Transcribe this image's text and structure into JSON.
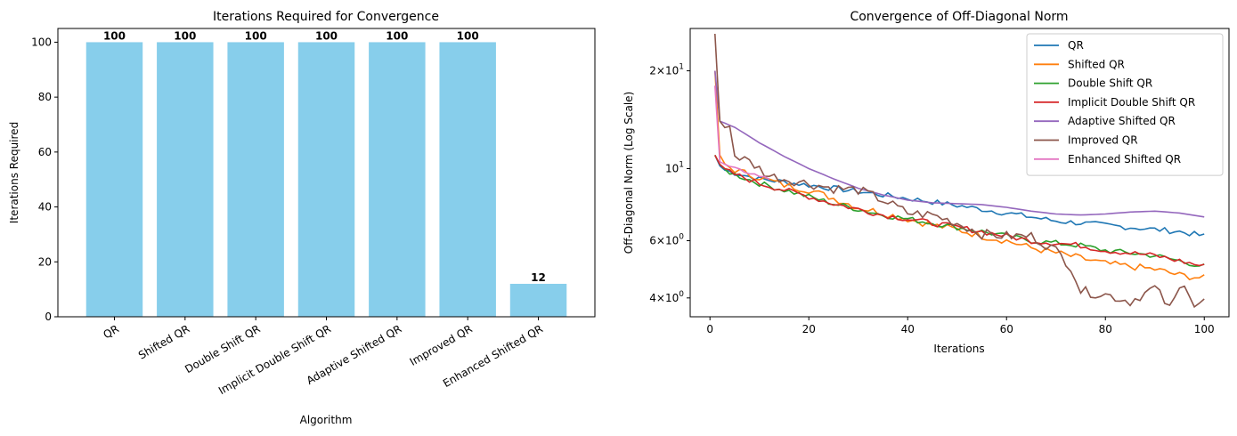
{
  "chart_data": [
    {
      "type": "bar",
      "title": "Iterations Required for Convergence",
      "xlabel": "Algorithm",
      "ylabel": "Iterations Required",
      "categories": [
        "QR",
        "Shifted QR",
        "Double Shift QR",
        "Implicit Double Shift QR",
        "Adaptive Shifted QR",
        "Improved QR",
        "Enhanced Shifted QR"
      ],
      "values": [
        100,
        100,
        100,
        100,
        100,
        100,
        12
      ],
      "data_labels": [
        "100",
        "100",
        "100",
        "100",
        "100",
        "100",
        "12"
      ],
      "ylim": [
        0,
        105
      ],
      "yticks": [
        0,
        20,
        40,
        60,
        80,
        100
      ],
      "ytick_labels": [
        "0",
        "20",
        "40",
        "60",
        "80",
        "100"
      ],
      "bar_color": "#87ceeb",
      "xtick_rotation": 30,
      "grid": false
    },
    {
      "type": "line",
      "title": "Convergence of Off-Diagonal Norm",
      "xlabel": "Iterations",
      "ylabel": "Off-Diagonal Norm (Log Scale)",
      "yscale": "log",
      "xlim": [
        -4,
        105
      ],
      "ylim": [
        3.5,
        27
      ],
      "xticks": [
        0,
        20,
        40,
        60,
        80,
        100
      ],
      "xtick_labels": [
        "0",
        "20",
        "40",
        "60",
        "80",
        "100"
      ],
      "yticks": [
        4,
        6,
        10,
        20
      ],
      "ytick_labels": [
        {
          "base": "4",
          "times": "×",
          "pow": "10",
          "exp": "0"
        },
        {
          "base": "6",
          "times": "×",
          "pow": "10",
          "exp": "0"
        },
        {
          "base": "",
          "times": "",
          "pow": "10",
          "exp": "1"
        },
        {
          "base": "2",
          "times": "×",
          "pow": "10",
          "exp": "1"
        }
      ],
      "grid": false,
      "legend_position": "top-right",
      "series": [
        {
          "name": "QR",
          "color": "#1f77b4",
          "points": [
            [
              1,
              11
            ],
            [
              2,
              10.2
            ],
            [
              3,
              9.9
            ],
            [
              5,
              9.7
            ],
            [
              10,
              9.3
            ],
            [
              15,
              9.1
            ],
            [
              20,
              8.9
            ],
            [
              25,
              8.7
            ],
            [
              30,
              8.5
            ],
            [
              35,
              8.3
            ],
            [
              40,
              8.1
            ],
            [
              45,
              7.9
            ],
            [
              50,
              7.7
            ],
            [
              55,
              7.5
            ],
            [
              60,
              7.3
            ],
            [
              65,
              7.1
            ],
            [
              70,
              6.9
            ],
            [
              75,
              6.8
            ],
            [
              80,
              6.7
            ],
            [
              85,
              6.6
            ],
            [
              90,
              6.5
            ],
            [
              95,
              6.4
            ],
            [
              100,
              6.2
            ]
          ],
          "jitter": 0.02
        },
        {
          "name": "Shifted QR",
          "color": "#ff7f0e",
          "points": [
            [
              1,
              20
            ],
            [
              2,
              11
            ],
            [
              3,
              10.3
            ],
            [
              5,
              9.9
            ],
            [
              10,
              9.4
            ],
            [
              15,
              8.9
            ],
            [
              20,
              8.6
            ],
            [
              25,
              8.1
            ],
            [
              30,
              7.6
            ],
            [
              35,
              7.3
            ],
            [
              40,
              7.0
            ],
            [
              45,
              6.7
            ],
            [
              50,
              6.5
            ],
            [
              55,
              6.2
            ],
            [
              60,
              6.0
            ],
            [
              65,
              5.7
            ],
            [
              70,
              5.5
            ],
            [
              75,
              5.3
            ],
            [
              80,
              5.1
            ],
            [
              85,
              5.0
            ],
            [
              90,
              4.9
            ],
            [
              95,
              4.7
            ],
            [
              100,
              4.6
            ]
          ],
          "jitter": 0.025
        },
        {
          "name": "Double Shift QR",
          "color": "#2ca02c",
          "points": [
            [
              1,
              11
            ],
            [
              2,
              10.3
            ],
            [
              3,
              9.9
            ],
            [
              5,
              9.6
            ],
            [
              10,
              9.0
            ],
            [
              15,
              8.6
            ],
            [
              20,
              8.2
            ],
            [
              25,
              7.8
            ],
            [
              30,
              7.5
            ],
            [
              35,
              7.2
            ],
            [
              40,
              7.0
            ],
            [
              45,
              6.8
            ],
            [
              50,
              6.6
            ],
            [
              55,
              6.4
            ],
            [
              60,
              6.2
            ],
            [
              65,
              6.0
            ],
            [
              70,
              5.9
            ],
            [
              75,
              5.8
            ],
            [
              80,
              5.6
            ],
            [
              85,
              5.5
            ],
            [
              90,
              5.4
            ],
            [
              95,
              5.2
            ],
            [
              100,
              5.0
            ]
          ],
          "jitter": 0.02
        },
        {
          "name": "Implicit Double Shift QR",
          "color": "#d62728",
          "points": [
            [
              1,
              11
            ],
            [
              2,
              10.3
            ],
            [
              3,
              9.9
            ],
            [
              5,
              9.6
            ],
            [
              10,
              9.0
            ],
            [
              15,
              8.6
            ],
            [
              20,
              8.2
            ],
            [
              25,
              7.8
            ],
            [
              30,
              7.5
            ],
            [
              35,
              7.2
            ],
            [
              40,
              7.0
            ],
            [
              45,
              6.8
            ],
            [
              50,
              6.6
            ],
            [
              55,
              6.4
            ],
            [
              60,
              6.2
            ],
            [
              65,
              6.0
            ],
            [
              70,
              5.9
            ],
            [
              75,
              5.8
            ],
            [
              80,
              5.6
            ],
            [
              85,
              5.5
            ],
            [
              90,
              5.4
            ],
            [
              95,
              5.2
            ],
            [
              100,
              5.0
            ]
          ],
          "jitter": 0.02
        },
        {
          "name": "Adaptive Shifted QR",
          "color": "#9467bd",
          "points": [
            [
              1,
              20
            ],
            [
              2,
              14
            ],
            [
              5,
              13.4
            ],
            [
              10,
              12
            ],
            [
              15,
              10.9
            ],
            [
              20,
              10
            ],
            [
              25,
              9.3
            ],
            [
              30,
              8.7
            ],
            [
              35,
              8.3
            ],
            [
              40,
              8.0
            ],
            [
              45,
              7.85
            ],
            [
              50,
              7.8
            ],
            [
              55,
              7.75
            ],
            [
              60,
              7.6
            ],
            [
              65,
              7.4
            ],
            [
              70,
              7.25
            ],
            [
              75,
              7.2
            ],
            [
              80,
              7.25
            ],
            [
              85,
              7.35
            ],
            [
              90,
              7.4
            ],
            [
              95,
              7.3
            ],
            [
              100,
              7.1
            ]
          ],
          "jitter": 0
        },
        {
          "name": "Improved QR",
          "color": "#8c564b",
          "points": [
            [
              1,
              26
            ],
            [
              2,
              14
            ],
            [
              4,
              13.5
            ],
            [
              5,
              11
            ],
            [
              8,
              10.5
            ],
            [
              12,
              9.5
            ],
            [
              20,
              9.0
            ],
            [
              25,
              8.7
            ],
            [
              30,
              8.6
            ],
            [
              35,
              8.0
            ],
            [
              40,
              7.3
            ],
            [
              45,
              7.2
            ],
            [
              50,
              6.8
            ],
            [
              55,
              6.3
            ],
            [
              60,
              6.2
            ],
            [
              65,
              6.2
            ],
            [
              70,
              5.6
            ],
            [
              73,
              5.0
            ],
            [
              75,
              4.2
            ],
            [
              80,
              4.1
            ],
            [
              85,
              3.9
            ],
            [
              90,
              4.3
            ],
            [
              93,
              3.7
            ],
            [
              96,
              4.5
            ],
            [
              98,
              3.8
            ],
            [
              100,
              3.9
            ]
          ],
          "jitter": 0.035
        },
        {
          "name": "Enhanced Shifted QR",
          "color": "#e377c2",
          "points": [
            [
              1,
              18
            ],
            [
              2,
              10.5
            ],
            [
              3,
              10.3
            ],
            [
              4,
              10.1
            ],
            [
              5,
              10
            ],
            [
              6,
              9.9
            ],
            [
              7,
              9.8
            ],
            [
              8,
              9.7
            ],
            [
              9,
              9.6
            ],
            [
              10,
              9.5
            ],
            [
              11,
              9.4
            ],
            [
              12,
              9.3
            ]
          ],
          "jitter": 0.01
        }
      ]
    }
  ]
}
